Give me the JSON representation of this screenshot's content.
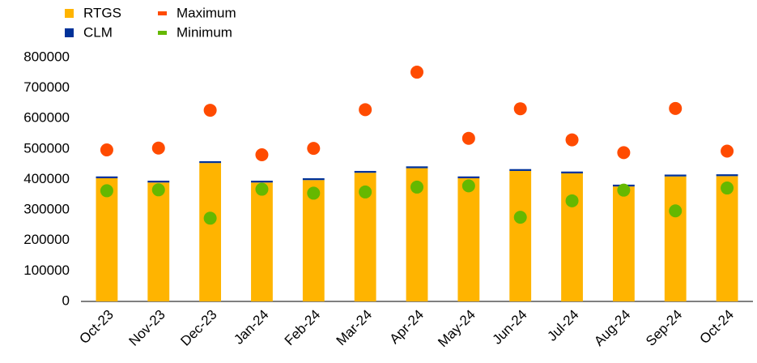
{
  "chart_data": {
    "type": "bar",
    "stacked": true,
    "categories": [
      "Oct-23",
      "Nov-23",
      "Dec-23",
      "Jan-24",
      "Feb-24",
      "Mar-24",
      "Apr-24",
      "May-24",
      "Jun-24",
      "Jul-24",
      "Aug-24",
      "Sep-24",
      "Oct-24"
    ],
    "series": [
      {
        "name": "RTGS",
        "type": "bar",
        "color": "#ffb400",
        "values": [
          404000,
          390000,
          454000,
          390000,
          398000,
          422000,
          437000,
          404000,
          428000,
          420000,
          377000,
          410000,
          411000
        ]
      },
      {
        "name": "CLM",
        "type": "bar",
        "color": "#003299",
        "values": [
          6000,
          6000,
          6000,
          6000,
          6000,
          6000,
          6000,
          6000,
          6000,
          6000,
          6000,
          6000,
          6000
        ]
      },
      {
        "name": "Maximum",
        "type": "scatter",
        "color": "#ff4b00",
        "values": [
          497000,
          503000,
          627000,
          481000,
          502000,
          629000,
          752000,
          535000,
          632000,
          530000,
          488000,
          633000,
          493000
        ]
      },
      {
        "name": "Minimum",
        "type": "scatter",
        "color": "#65b800",
        "values": [
          363000,
          366000,
          273000,
          368000,
          355000,
          359000,
          375000,
          379000,
          276000,
          330000,
          365000,
          297000,
          372000
        ]
      }
    ],
    "ylim": [
      0,
      800000
    ],
    "yticks": [
      0,
      100000,
      200000,
      300000,
      400000,
      500000,
      600000,
      700000,
      800000
    ]
  }
}
